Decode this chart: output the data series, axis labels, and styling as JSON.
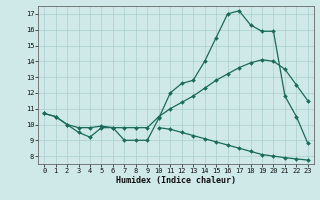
{
  "background_color": "#cfe8e8",
  "grid_color": "#aacfcf",
  "line_color": "#1a6b5a",
  "xlabel": "Humidex (Indice chaleur)",
  "xlim": [
    -0.5,
    23.5
  ],
  "ylim": [
    7.5,
    17.5
  ],
  "yticks": [
    8,
    9,
    10,
    11,
    12,
    13,
    14,
    15,
    16,
    17
  ],
  "xticks": [
    0,
    1,
    2,
    3,
    4,
    5,
    6,
    7,
    8,
    9,
    10,
    11,
    12,
    13,
    14,
    15,
    16,
    17,
    18,
    19,
    20,
    21,
    22,
    23
  ],
  "line1_x": [
    0,
    1,
    2,
    3,
    4,
    5,
    6,
    7,
    8,
    9,
    10,
    11,
    12,
    13,
    14,
    15,
    16,
    17,
    18,
    19,
    20,
    21,
    22,
    23
  ],
  "line1_y": [
    10.7,
    10.5,
    10.0,
    9.5,
    9.2,
    9.8,
    9.8,
    9.0,
    9.0,
    9.0,
    10.4,
    12.0,
    12.6,
    12.8,
    14.0,
    15.5,
    17.0,
    17.2,
    16.3,
    15.9,
    15.9,
    11.8,
    10.5,
    8.8
  ],
  "line2_x": [
    0,
    1,
    2,
    3,
    4,
    5,
    6,
    7,
    8,
    9,
    10,
    11,
    12,
    13,
    14,
    15,
    16,
    17,
    18,
    19,
    20,
    21,
    22,
    23
  ],
  "line2_y": [
    10.7,
    10.5,
    10.0,
    9.8,
    9.8,
    9.9,
    9.8,
    9.8,
    9.8,
    9.8,
    10.5,
    11.0,
    11.4,
    11.8,
    12.3,
    12.8,
    13.2,
    13.6,
    13.9,
    14.1,
    14.0,
    13.5,
    12.5,
    11.5
  ],
  "line3_x": [
    10,
    11,
    12,
    13,
    14,
    15,
    16,
    17,
    18,
    19,
    20,
    21,
    22,
    23
  ],
  "line3_y": [
    9.8,
    9.7,
    9.5,
    9.3,
    9.1,
    8.9,
    8.7,
    8.5,
    8.3,
    8.1,
    8.0,
    7.9,
    7.82,
    7.75
  ]
}
